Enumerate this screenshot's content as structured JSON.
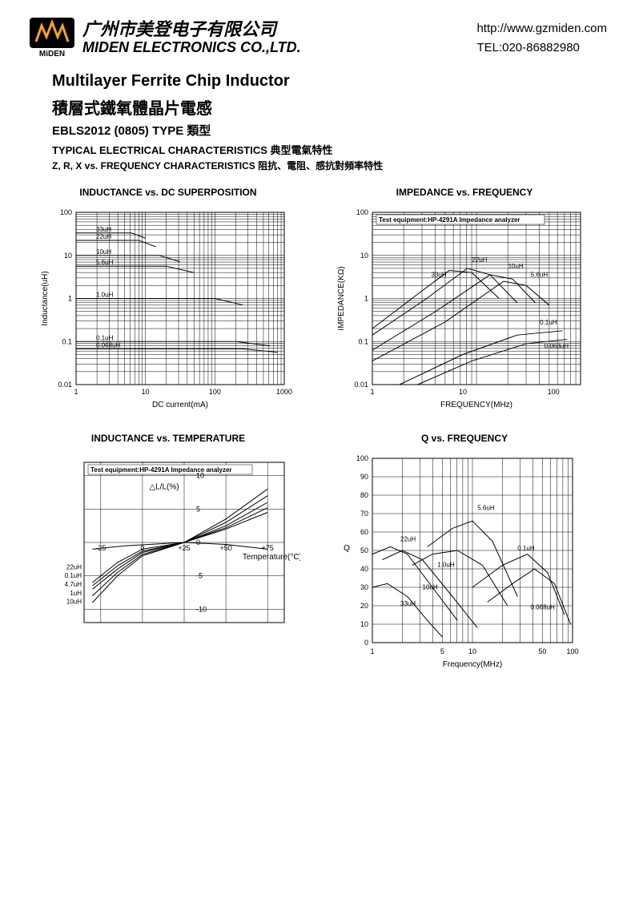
{
  "header": {
    "company_cn": "广州市美登电子有限公司",
    "company_en": "MIDEN ELECTRONICS CO.,LTD.",
    "logo_text": "MiDEN",
    "url": "http://www.gzmiden.com",
    "tel": "TEL:020-86882980"
  },
  "title": {
    "en": "Multilayer Ferrite Chip Inductor",
    "cn": "積層式鐵氧體晶片電感",
    "model": "EBLS2012 (0805) TYPE 類型",
    "sub1": "TYPICAL ELECTRICAL CHARACTERISTICS 典型電氣特性",
    "sub2": "Z, R, X vs. FREQUENCY CHARACTERISTICS 阻抗、電阻、感抗對頻率特性"
  },
  "chart1": {
    "title": "INDUCTANCE vs. DC SUPERPOSITION",
    "xlabel": "DC current(mA)",
    "ylabel": "Inductance(uH)",
    "xticks": [
      "1",
      "10",
      "100",
      "1000"
    ],
    "yticks": [
      "0.01",
      "0.1",
      "1",
      "10",
      "100"
    ],
    "xlim_log": [
      0,
      3
    ],
    "ylim_log": [
      -2,
      2
    ],
    "series": [
      {
        "label": "33uH",
        "pts": [
          [
            0,
            1.52
          ],
          [
            0.8,
            1.52
          ],
          [
            1.0,
            1.4
          ]
        ]
      },
      {
        "label": "22uH",
        "pts": [
          [
            0,
            1.35
          ],
          [
            0.9,
            1.35
          ],
          [
            1.15,
            1.2
          ]
        ]
      },
      {
        "label": "10uH",
        "pts": [
          [
            0,
            1.0
          ],
          [
            1.2,
            1.0
          ],
          [
            1.5,
            0.85
          ]
        ]
      },
      {
        "label": "5.6uH",
        "pts": [
          [
            0,
            0.75
          ],
          [
            1.3,
            0.75
          ],
          [
            1.7,
            0.6
          ]
        ]
      },
      {
        "label": "1.0uH",
        "pts": [
          [
            0,
            0.0
          ],
          [
            2.0,
            0.0
          ],
          [
            2.4,
            -0.15
          ]
        ]
      },
      {
        "label": "0.1uH",
        "pts": [
          [
            0,
            -1.0
          ],
          [
            2.3,
            -1.0
          ],
          [
            2.8,
            -1.1
          ]
        ]
      },
      {
        "label": "0.068uH",
        "pts": [
          [
            0,
            -1.17
          ],
          [
            2.4,
            -1.17
          ],
          [
            2.9,
            -1.25
          ]
        ]
      }
    ],
    "bg": "#ffffff",
    "grid_color": "#000000",
    "line_color": "#000000"
  },
  "chart2": {
    "title": "IMPEDANCE vs. FREQUENCY",
    "note": "Test equipment:HP-4291A Impedance analyzer",
    "xlabel": "FREQUENCY(MHz)",
    "ylabel": "IMPEDANCE(KΩ)",
    "xticks": [
      "1",
      "10",
      "100"
    ],
    "yticks": [
      "0.01",
      "0.1",
      "1",
      "10",
      "100"
    ],
    "xlim_log": [
      0,
      2.3
    ],
    "ylim_log": [
      -2,
      2
    ],
    "series": [
      {
        "label": "33uH",
        "pts": [
          [
            0,
            -0.7
          ],
          [
            0.5,
            0.1
          ],
          [
            0.85,
            0.65
          ],
          [
            1.1,
            0.6
          ],
          [
            1.4,
            0.0
          ]
        ]
      },
      {
        "label": "22uH",
        "pts": [
          [
            0,
            -0.85
          ],
          [
            0.6,
            0.0
          ],
          [
            1.05,
            0.7
          ],
          [
            1.3,
            0.55
          ],
          [
            1.6,
            -0.1
          ]
        ]
      },
      {
        "label": "10uH",
        "pts": [
          [
            0,
            -1.2
          ],
          [
            0.7,
            -0.3
          ],
          [
            1.3,
            0.55
          ],
          [
            1.55,
            0.45
          ],
          [
            1.8,
            -0.1
          ]
        ]
      },
      {
        "label": "5.6uH",
        "pts": [
          [
            0,
            -1.45
          ],
          [
            0.8,
            -0.55
          ],
          [
            1.45,
            0.4
          ],
          [
            1.7,
            0.3
          ],
          [
            1.95,
            -0.15
          ]
        ]
      },
      {
        "label": "0.1uH",
        "pts": [
          [
            0.3,
            -2.0
          ],
          [
            1.0,
            -1.3
          ],
          [
            1.6,
            -0.85
          ],
          [
            2.1,
            -0.75
          ]
        ]
      },
      {
        "label": "0.068uH",
        "pts": [
          [
            0.5,
            -2.0
          ],
          [
            1.1,
            -1.45
          ],
          [
            1.7,
            -1.05
          ],
          [
            2.15,
            -0.95
          ]
        ]
      }
    ],
    "bg": "#ffffff",
    "grid_color": "#000000",
    "line_color": "#000000"
  },
  "chart3": {
    "title": "INDUCTANCE vs. TEMPERATURE",
    "note": "Test equipment:HP-4291A Impedance analyzer",
    "xlabel": "Temperature(°C)",
    "ylabel": "△L/L(%)",
    "xticks": [
      "-25",
      "0",
      "+25",
      "+50",
      "+75"
    ],
    "yticks": [
      "-10",
      "-5",
      "0",
      "5",
      "10"
    ],
    "xlim": [
      -35,
      85
    ],
    "ylim": [
      -12,
      12
    ],
    "left_labels": [
      "22uH",
      "0.1uH",
      "4.7uH",
      "1uH",
      "10uH"
    ],
    "series": [
      {
        "pts": [
          [
            -30,
            -9
          ],
          [
            -15,
            -5
          ],
          [
            0,
            -2
          ],
          [
            25,
            0
          ],
          [
            50,
            3.5
          ],
          [
            75,
            8
          ]
        ]
      },
      {
        "pts": [
          [
            -30,
            -8
          ],
          [
            -15,
            -4.5
          ],
          [
            0,
            -1.8
          ],
          [
            25,
            0
          ],
          [
            50,
            3
          ],
          [
            75,
            7
          ]
        ]
      },
      {
        "pts": [
          [
            -30,
            -7
          ],
          [
            -15,
            -4
          ],
          [
            0,
            -1.5
          ],
          [
            25,
            0
          ],
          [
            50,
            2.5
          ],
          [
            75,
            6
          ]
        ]
      },
      {
        "pts": [
          [
            -30,
            -6.5
          ],
          [
            -15,
            -3.5
          ],
          [
            0,
            -1.3
          ],
          [
            25,
            0
          ],
          [
            50,
            2.2
          ],
          [
            75,
            5.2
          ]
        ]
      },
      {
        "pts": [
          [
            -30,
            -6
          ],
          [
            -15,
            -3
          ],
          [
            0,
            -1
          ],
          [
            25,
            0
          ],
          [
            50,
            2
          ],
          [
            75,
            4.5
          ]
        ]
      },
      {
        "pts": [
          [
            -30,
            -1
          ],
          [
            -10,
            -0.5
          ],
          [
            25,
            0
          ],
          [
            50,
            -0.3
          ],
          [
            75,
            -1
          ]
        ]
      }
    ],
    "bg": "#ffffff",
    "grid_color": "#000000",
    "line_color": "#000000"
  },
  "chart4": {
    "title": "Q vs. FREQUENCY",
    "xlabel": "Frequency(MHz)",
    "ylabel": "Q",
    "xticks": [
      "1",
      "5",
      "10",
      "50",
      "100"
    ],
    "yticks": [
      "0",
      "10",
      "20",
      "30",
      "40",
      "50",
      "60",
      "70",
      "80",
      "90",
      "100"
    ],
    "xlim_log": [
      0,
      2
    ],
    "ylim": [
      0,
      100
    ],
    "series": [
      {
        "label": "22uH",
        "pts": [
          [
            0,
            48
          ],
          [
            0.18,
            52
          ],
          [
            0.35,
            48
          ],
          [
            0.6,
            30
          ],
          [
            0.85,
            12
          ]
        ]
      },
      {
        "label": "33uH",
        "pts": [
          [
            0,
            30
          ],
          [
            0.15,
            32
          ],
          [
            0.35,
            25
          ],
          [
            0.55,
            12
          ],
          [
            0.7,
            3
          ]
        ]
      },
      {
        "label": "10uH",
        "pts": [
          [
            0.1,
            45
          ],
          [
            0.3,
            50
          ],
          [
            0.5,
            45
          ],
          [
            0.8,
            25
          ],
          [
            1.05,
            8
          ]
        ]
      },
      {
        "label": "1.0uH",
        "pts": [
          [
            0.4,
            42
          ],
          [
            0.6,
            48
          ],
          [
            0.85,
            50
          ],
          [
            1.1,
            42
          ],
          [
            1.35,
            20
          ]
        ]
      },
      {
        "label": "5.6uH",
        "pts": [
          [
            0.55,
            52
          ],
          [
            0.8,
            62
          ],
          [
            1.0,
            66
          ],
          [
            1.2,
            55
          ],
          [
            1.45,
            25
          ]
        ]
      },
      {
        "label": "0.1uH",
        "pts": [
          [
            1.0,
            30
          ],
          [
            1.3,
            42
          ],
          [
            1.55,
            48
          ],
          [
            1.75,
            38
          ],
          [
            1.92,
            15
          ]
        ]
      },
      {
        "label": "0.068uH",
        "pts": [
          [
            1.15,
            22
          ],
          [
            1.4,
            32
          ],
          [
            1.62,
            40
          ],
          [
            1.82,
            32
          ],
          [
            1.98,
            10
          ]
        ]
      }
    ],
    "ann_pos": {
      "22uH": [
        0.28,
        55
      ],
      "33uH": [
        0.28,
        20
      ],
      "10uH": [
        0.5,
        29
      ],
      "1.0uH": [
        0.65,
        41
      ],
      "5.6uH": [
        1.05,
        72
      ],
      "0.1uH": [
        1.45,
        50
      ],
      "0.068uH": [
        1.58,
        18
      ]
    },
    "bg": "#ffffff",
    "grid_color": "#000000",
    "line_color": "#000000"
  }
}
